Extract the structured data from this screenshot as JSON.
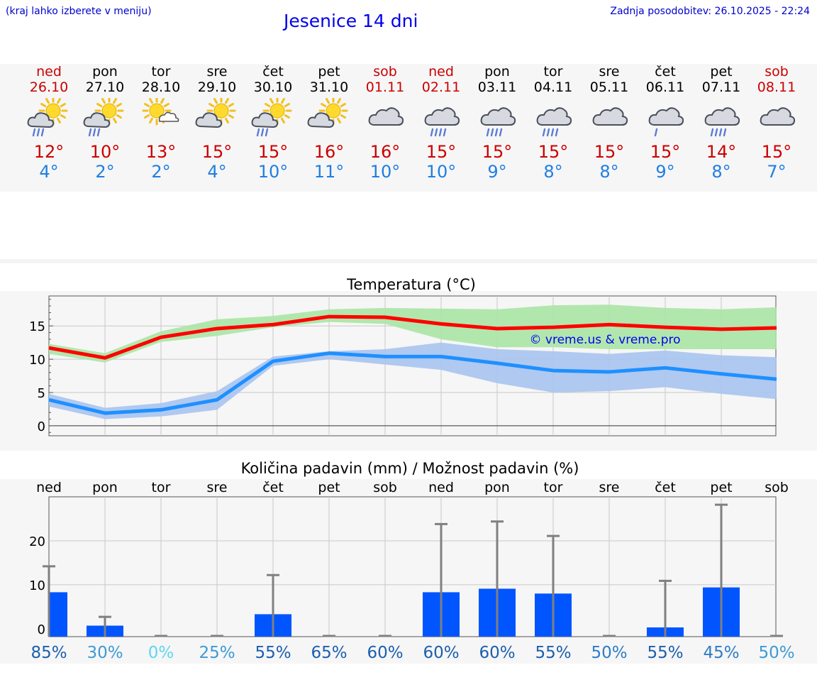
{
  "header": {
    "hint": "(kraj lahko izberete v meniju)",
    "title": "Jesenice 14 dni",
    "updated": "Zadnja posodobitev: 26.10.2025 - 22:24"
  },
  "days": [
    {
      "name": "ned",
      "date": "26.10",
      "weekend": true,
      "icon": "sun-cloud-rain-icon",
      "tmax": "12°",
      "tmin": "4°"
    },
    {
      "name": "pon",
      "date": "27.10",
      "weekend": false,
      "icon": "sun-cloud-rain-icon",
      "tmax": "10°",
      "tmin": "2°"
    },
    {
      "name": "tor",
      "date": "28.10",
      "weekend": false,
      "icon": "sun-small-cloud-icon",
      "tmax": "13°",
      "tmin": "2°"
    },
    {
      "name": "sre",
      "date": "29.10",
      "weekend": false,
      "icon": "sun-cloud-icon",
      "tmax": "15°",
      "tmin": "4°"
    },
    {
      "name": "čet",
      "date": "30.10",
      "weekend": false,
      "icon": "sun-cloud-rain-icon",
      "tmax": "15°",
      "tmin": "10°"
    },
    {
      "name": "pet",
      "date": "31.10",
      "weekend": false,
      "icon": "sun-cloud-icon",
      "tmax": "16°",
      "tmin": "11°"
    },
    {
      "name": "sob",
      "date": "01.11",
      "weekend": true,
      "icon": "cloud-icon",
      "tmax": "16°",
      "tmin": "10°"
    },
    {
      "name": "ned",
      "date": "02.11",
      "weekend": true,
      "icon": "cloud-rain-icon",
      "tmax": "15°",
      "tmin": "10°"
    },
    {
      "name": "pon",
      "date": "03.11",
      "weekend": false,
      "icon": "cloud-rain-icon",
      "tmax": "15°",
      "tmin": "9°"
    },
    {
      "name": "tor",
      "date": "04.11",
      "weekend": false,
      "icon": "cloud-rain-icon",
      "tmax": "15°",
      "tmin": "8°"
    },
    {
      "name": "sre",
      "date": "05.11",
      "weekend": false,
      "icon": "cloud-icon",
      "tmax": "15°",
      "tmin": "8°"
    },
    {
      "name": "čet",
      "date": "06.11",
      "weekend": false,
      "icon": "cloud-light-rain-icon",
      "tmax": "15°",
      "tmin": "9°"
    },
    {
      "name": "pet",
      "date": "07.11",
      "weekend": false,
      "icon": "cloud-rain-icon",
      "tmax": "14°",
      "tmin": "8°"
    },
    {
      "name": "sob",
      "date": "08.11",
      "weekend": true,
      "icon": "cloud-icon",
      "tmax": "15°",
      "tmin": "7°"
    }
  ],
  "colors": {
    "max_line": "#ff0000",
    "max_band": "#aae6a5",
    "min_line": "#1e90ff",
    "min_band": "#a9c4f0",
    "precip_bar": "#0055ff",
    "error_bar": "#808080",
    "weekend": "#cc0000",
    "min_text": "#1e7fe0"
  },
  "chart_data": [
    {
      "type": "line",
      "title": "Temperatura (°C)",
      "watermark": "© vreme.us & vreme.pro",
      "x": [
        "26.10",
        "27.10",
        "28.10",
        "29.10",
        "30.10",
        "31.10",
        "01.11",
        "02.11",
        "03.11",
        "04.11",
        "05.11",
        "06.11",
        "07.11",
        "08.11"
      ],
      "ylim": [
        -1.5,
        19.5
      ],
      "yticks": [
        0,
        5,
        10,
        15
      ],
      "grid": true,
      "series": [
        {
          "role": "max",
          "values": [
            11.7,
            10.2,
            13.3,
            14.6,
            15.2,
            16.4,
            16.3,
            15.3,
            14.6,
            14.8,
            15.2,
            14.8,
            14.5,
            14.7
          ],
          "band_low": [
            10.8,
            9.5,
            12.6,
            13.5,
            14.8,
            15.6,
            15.3,
            13.0,
            11.8,
            11.8,
            11.5,
            11.5,
            11.5,
            11.5
          ],
          "band_high": [
            12.3,
            10.9,
            14.2,
            16.0,
            16.5,
            17.5,
            17.7,
            17.6,
            17.5,
            18.1,
            18.2,
            17.7,
            17.5,
            17.8
          ]
        },
        {
          "role": "min",
          "values": [
            3.9,
            1.9,
            2.4,
            3.9,
            9.7,
            10.9,
            10.4,
            10.4,
            9.4,
            8.3,
            8.1,
            8.7,
            7.8,
            7.0
          ],
          "band_low": [
            2.9,
            1.0,
            1.4,
            2.4,
            9.0,
            10.0,
            9.2,
            8.4,
            6.4,
            5.0,
            5.2,
            5.8,
            4.8,
            4.0
          ],
          "band_high": [
            4.8,
            2.7,
            3.4,
            5.2,
            10.4,
            11.2,
            11.5,
            12.5,
            11.5,
            11.2,
            10.8,
            11.3,
            10.6,
            10.3
          ]
        }
      ]
    },
    {
      "type": "bar",
      "title": "Količina padavin (mm) / Možnost padavin (%)",
      "categories": [
        "ned",
        "pon",
        "tor",
        "sre",
        "čet",
        "pet",
        "sob",
        "ned",
        "pon",
        "tor",
        "sre",
        "čet",
        "pet",
        "sob"
      ],
      "values": [
        8.3,
        0.7,
        0,
        0,
        3.3,
        0,
        0,
        8.3,
        9.1,
        8.0,
        0,
        0.3,
        9.4,
        0
      ],
      "error_high": [
        14.2,
        2.7,
        0,
        0,
        12.2,
        0,
        0,
        23.8,
        24.4,
        21.1,
        0,
        10.9,
        28.2,
        0
      ],
      "probability": [
        "85%",
        "30%",
        "0%",
        "25%",
        "55%",
        "65%",
        "60%",
        "60%",
        "60%",
        "55%",
        "50%",
        "55%",
        "45%",
        "50%"
      ],
      "probability_colors": [
        "#1c5fae",
        "#3d9ad6",
        "#5fd6ee",
        "#3d9ad6",
        "#1c5fae",
        "#1c5fae",
        "#1c5fae",
        "#1c5fae",
        "#1c5fae",
        "#1c5fae",
        "#2f7cc6",
        "#1c5fae",
        "#2f7cc6",
        "#3d9ad6"
      ],
      "ylim": [
        -1.8,
        30
      ],
      "yticks": [
        0,
        10,
        20
      ],
      "grid": true
    }
  ]
}
